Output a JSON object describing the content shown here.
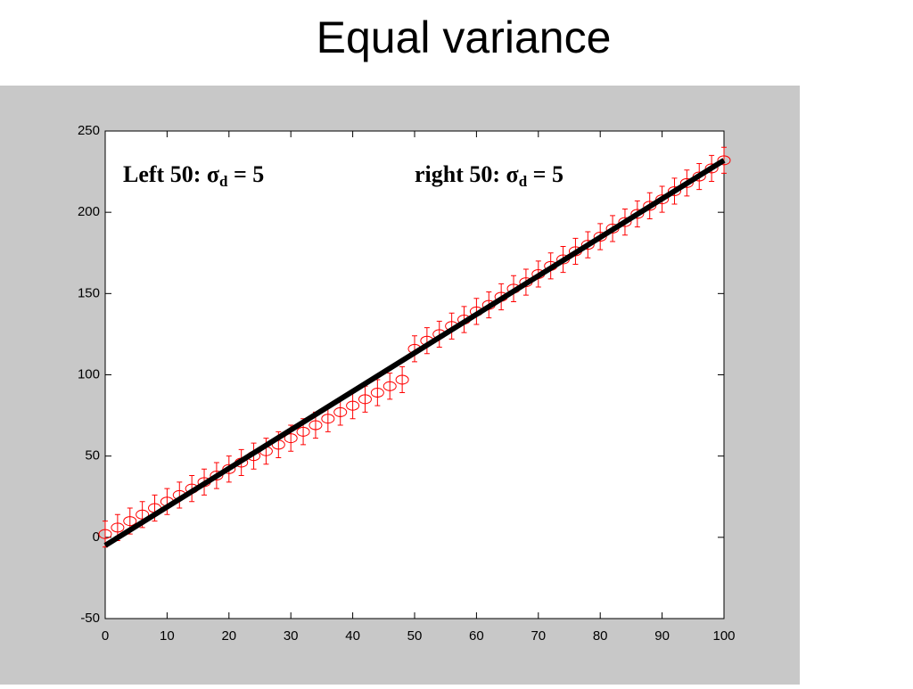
{
  "chart_data": {
    "type": "scatter",
    "title": "Equal variance",
    "xlim": [
      0,
      100
    ],
    "ylim": [
      -50,
      250
    ],
    "xticks": [
      0,
      10,
      20,
      30,
      40,
      50,
      60,
      70,
      80,
      90,
      100
    ],
    "yticks": [
      -50,
      0,
      50,
      100,
      150,
      200,
      250
    ],
    "series": [
      {
        "color": "#ff0000",
        "x": [
          0,
          2,
          4,
          6,
          8,
          10,
          12,
          14,
          16,
          18,
          20,
          22,
          24,
          26,
          28,
          30,
          32,
          34,
          36,
          38,
          40,
          42,
          44,
          46,
          48
        ],
        "values": [
          2,
          6,
          10,
          14,
          18,
          22,
          26,
          30,
          34,
          38,
          42,
          46,
          50,
          53,
          57,
          61,
          65,
          69,
          73,
          77,
          81,
          85,
          89,
          93,
          97
        ],
        "errors": [
          8,
          8,
          8,
          8,
          8,
          8,
          8,
          8,
          8,
          8,
          8,
          8,
          8,
          8,
          8,
          8,
          8,
          8,
          8,
          8,
          8,
          8,
          8,
          8,
          8
        ]
      },
      {
        "color": "#ff0000",
        "x": [
          50,
          52,
          54,
          56,
          58,
          60,
          62,
          64,
          66,
          68,
          70,
          72,
          74,
          76,
          78,
          80,
          82,
          84,
          86,
          88,
          90,
          92,
          94,
          96,
          98,
          100
        ],
        "values": [
          116,
          121,
          125,
          130,
          134,
          139,
          143,
          148,
          153,
          157,
          162,
          167,
          171,
          176,
          180,
          185,
          190,
          194,
          199,
          204,
          208,
          213,
          218,
          222,
          227,
          232
        ],
        "errors": [
          8,
          8,
          8,
          8,
          8,
          8,
          8,
          8,
          8,
          8,
          8,
          8,
          8,
          8,
          8,
          8,
          8,
          8,
          8,
          8,
          8,
          8,
          8,
          8,
          8,
          8
        ]
      }
    ],
    "fit": {
      "color": "#000000",
      "x": [
        0,
        100
      ],
      "values": [
        -5,
        232
      ]
    },
    "annotations": [
      {
        "text": "Left 50:  σ",
        "sub": "d",
        "rest": " = 5"
      },
      {
        "text": "right 50: σ",
        "sub": "d",
        "rest": " = 5"
      }
    ]
  }
}
